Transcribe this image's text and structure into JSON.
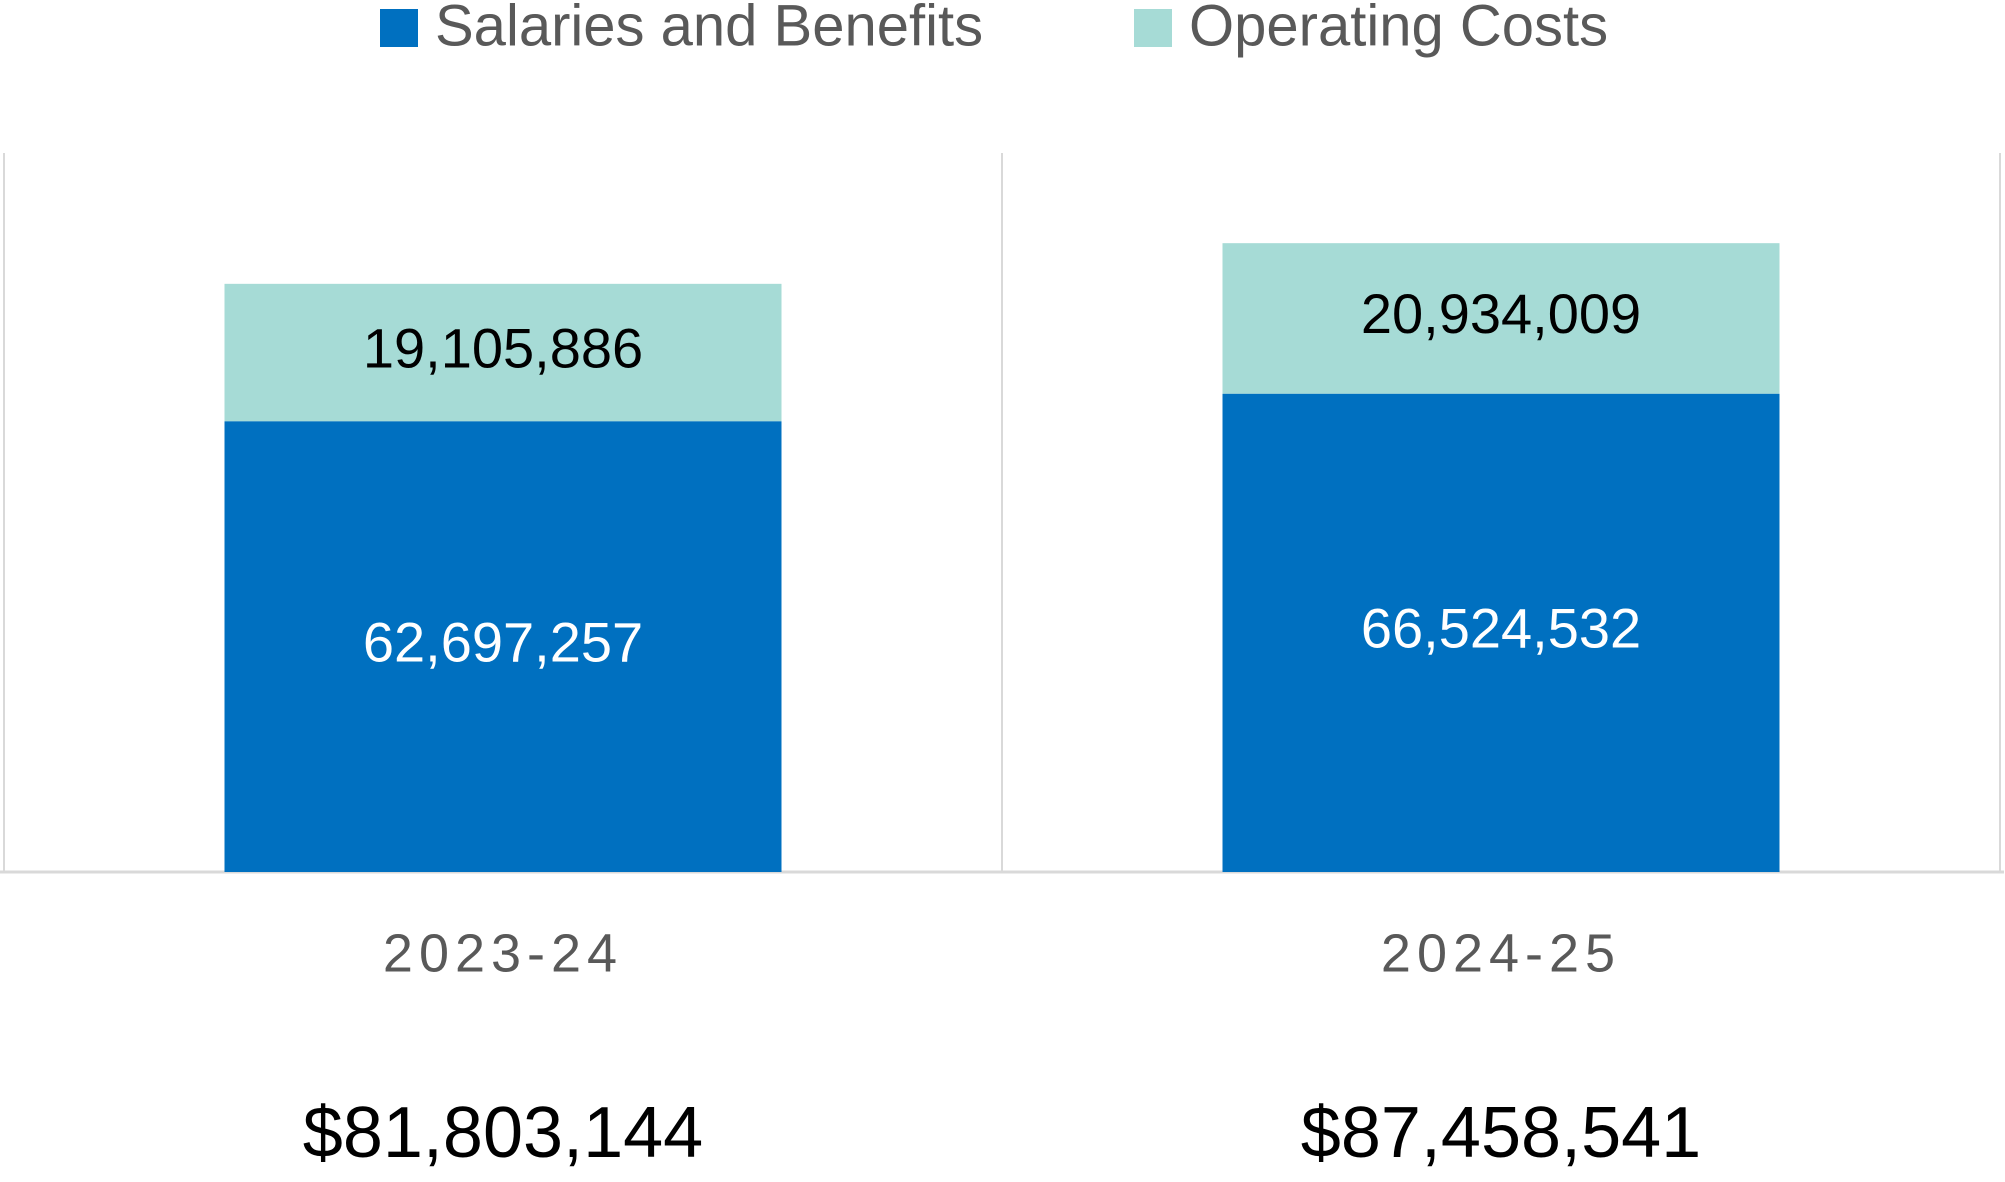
{
  "chart_data": {
    "type": "stacked_bar",
    "categories": [
      "2023-24",
      "2024-25"
    ],
    "series": [
      {
        "name": "Salaries and Benefits",
        "color": "#0070c0",
        "label_color": "#ffffff",
        "values": [
          62697257,
          66524532
        ],
        "value_labels": [
          "62,697,257",
          "66,524,532"
        ]
      },
      {
        "name": "Operating Costs",
        "color": "#a6dbd6",
        "label_color": "#000000",
        "values": [
          19105886,
          20934009
        ],
        "value_labels": [
          "19,105,886",
          "20,934,009"
        ]
      }
    ],
    "total_labels": [
      "$81,803,144",
      "$87,458,541"
    ],
    "ylim": [
      0,
      100000000
    ],
    "legend": "top"
  }
}
